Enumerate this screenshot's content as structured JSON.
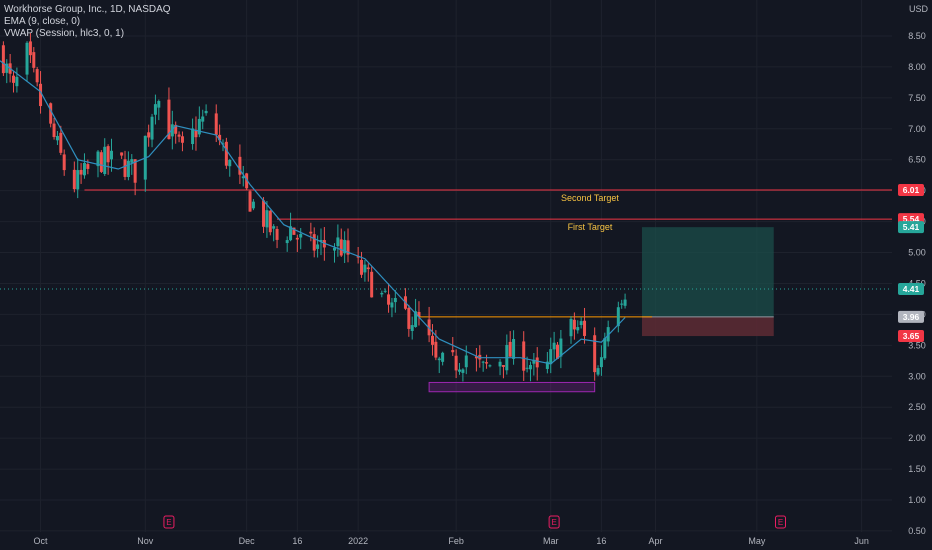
{
  "header": {
    "title": "Workhorse Group, Inc., 1D, NASDAQ",
    "indicators": [
      "EMA (9, close, 0)",
      "VWAP (Session, hlc3, 0, 1)"
    ],
    "currency": "USD"
  },
  "colors": {
    "background": "#131722",
    "up": "#26a69a",
    "down": "#ef5350",
    "ema": "#2f8fbf",
    "resistance_line": "#f23645",
    "support_line": "#ff9800",
    "target_text": "#f6c343",
    "box_purple": "#9c27b0",
    "profit_zone": "#1b4d4a",
    "loss_zone": "#5a2a33",
    "earnings": "#e91e63"
  },
  "chart_data": {
    "type": "candlestick",
    "y_axis": {
      "range": [
        0.5,
        9.0
      ],
      "ticks": [
        "8.50",
        "8.00",
        "7.50",
        "7.00",
        "6.50",
        "6.00",
        "5.50",
        "5.00",
        "4.50",
        "4.00",
        "3.50",
        "3.00",
        "2.50",
        "2.00",
        "1.50",
        "1.00",
        "0.50"
      ],
      "side": "right"
    },
    "x_axis": {
      "range": [
        "2021-09-19",
        "2022-06-10"
      ],
      "ticks": [
        {
          "date": "2021-10-01",
          "label": "Oct"
        },
        {
          "date": "2021-11-01",
          "label": "Nov"
        },
        {
          "date": "2021-12-01",
          "label": "Dec"
        },
        {
          "date": "2021-12-16",
          "label": "16"
        },
        {
          "date": "2022-01-03",
          "label": "2022"
        },
        {
          "date": "2022-02-01",
          "label": "Feb"
        },
        {
          "date": "2022-03-01",
          "label": "Mar"
        },
        {
          "date": "2022-03-16",
          "label": "16"
        },
        {
          "date": "2022-04-01",
          "label": "Apr"
        },
        {
          "date": "2022-05-01",
          "label": "May"
        },
        {
          "date": "2022-06-01",
          "label": "Jun"
        }
      ]
    },
    "price_path": [
      [
        "2021-09-19",
        8.3
      ],
      [
        "2021-09-23",
        7.6
      ],
      [
        "2021-09-27",
        8.2
      ],
      [
        "2021-10-01",
        7.4
      ],
      [
        "2021-10-06",
        6.7
      ],
      [
        "2021-10-10",
        6.05
      ],
      [
        "2021-10-14",
        6.25
      ],
      [
        "2021-10-18",
        6.5
      ],
      [
        "2021-10-25",
        6.45
      ],
      [
        "2021-10-29",
        6.3
      ],
      [
        "2021-11-02",
        7.0
      ],
      [
        "2021-11-04",
        7.6
      ],
      [
        "2021-11-08",
        7.0
      ],
      [
        "2021-11-12",
        6.6
      ],
      [
        "2021-11-17",
        7.1
      ],
      [
        "2021-11-20",
        7.2
      ],
      [
        "2021-11-24",
        6.65
      ],
      [
        "2021-11-28",
        6.2
      ],
      [
        "2021-12-02",
        5.85
      ],
      [
        "2021-12-06",
        5.55
      ],
      [
        "2021-12-10",
        5.2
      ],
      [
        "2021-12-14",
        5.4
      ],
      [
        "2021-12-18",
        5.1
      ],
      [
        "2021-12-23",
        5.1
      ],
      [
        "2021-12-28",
        5.15
      ],
      [
        "2022-01-03",
        4.75
      ],
      [
        "2022-01-07",
        4.5
      ],
      [
        "2022-01-12",
        4.1
      ],
      [
        "2022-01-17",
        4.0
      ],
      [
        "2022-01-22",
        3.85
      ],
      [
        "2022-01-26",
        3.2
      ],
      [
        "2022-01-30",
        3.15
      ],
      [
        "2022-02-04",
        3.35
      ],
      [
        "2022-02-09",
        3.1
      ],
      [
        "2022-02-14",
        3.3
      ],
      [
        "2022-02-19",
        3.4
      ],
      [
        "2022-02-23",
        3.2
      ],
      [
        "2022-02-26",
        2.9
      ],
      [
        "2022-03-02",
        3.4
      ],
      [
        "2022-03-06",
        3.75
      ],
      [
        "2022-03-10",
        3.8
      ],
      [
        "2022-03-13",
        3.2
      ],
      [
        "2022-03-15",
        3.1
      ],
      [
        "2022-03-18",
        3.95
      ],
      [
        "2022-03-21",
        4.3
      ],
      [
        "2022-03-23",
        4.41
      ]
    ],
    "ema_path": [
      [
        "2021-09-19",
        8.1
      ],
      [
        "2021-10-01",
        7.6
      ],
      [
        "2021-10-12",
        6.5
      ],
      [
        "2021-10-24",
        6.35
      ],
      [
        "2021-11-02",
        6.55
      ],
      [
        "2021-11-10",
        7.05
      ],
      [
        "2021-11-22",
        6.9
      ],
      [
        "2021-12-02",
        6.1
      ],
      [
        "2021-12-12",
        5.45
      ],
      [
        "2021-12-24",
        5.15
      ],
      [
        "2022-01-05",
        4.9
      ],
      [
        "2022-01-16",
        4.25
      ],
      [
        "2022-01-27",
        3.6
      ],
      [
        "2022-02-08",
        3.3
      ],
      [
        "2022-02-20",
        3.3
      ],
      [
        "2022-03-01",
        3.2
      ],
      [
        "2022-03-10",
        3.6
      ],
      [
        "2022-03-16",
        3.55
      ],
      [
        "2022-03-23",
        3.95
      ]
    ],
    "horizontal_lines": [
      {
        "from": "2021-10-14",
        "to": "2022-06-10",
        "value": 6.01,
        "color_key": "resistance_line",
        "label": "Second Target"
      },
      {
        "from": "2021-12-10",
        "to": "2022-06-10",
        "value": 5.54,
        "color_key": "resistance_line",
        "label": "First Target"
      },
      {
        "from": "2022-01-21",
        "to": "2022-03-31",
        "value": 3.96,
        "color_key": "support_line",
        "label": ""
      }
    ],
    "rectangles": [
      {
        "x0": "2022-01-24",
        "x1": "2022-03-14",
        "y0": 2.75,
        "y1": 2.9,
        "color_key": "box_purple"
      }
    ],
    "position": {
      "x0": "2022-03-28",
      "x1": "2022-05-06",
      "target": 5.41,
      "entry": 3.96,
      "stop": 3.65
    },
    "price_labels": [
      {
        "value": 6.01,
        "text": "6.01",
        "color": "#f23645"
      },
      {
        "value": 5.54,
        "text": "5.54",
        "color": "#f23645"
      },
      {
        "value": 5.41,
        "text": "5.41",
        "color": "#26a69a"
      },
      {
        "value": 4.41,
        "text": "4.41",
        "color": "#26a69a"
      },
      {
        "value": 3.96,
        "text": "3.96",
        "color": "#b2b5be"
      },
      {
        "value": 3.65,
        "text": "3.65",
        "color": "#f23645"
      }
    ],
    "earnings_markers": [
      {
        "date": "2021-11-08",
        "label": "E"
      },
      {
        "date": "2022-03-02",
        "label": "E"
      },
      {
        "date": "2022-05-08",
        "label": "E"
      }
    ]
  }
}
